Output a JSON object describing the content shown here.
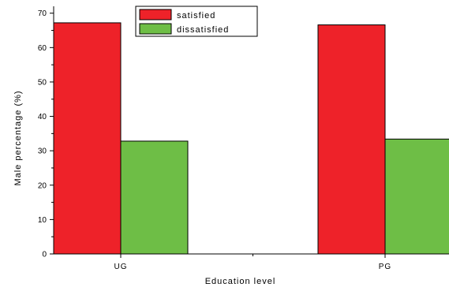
{
  "chart_data": {
    "type": "bar",
    "categories": [
      "UG",
      "PG"
    ],
    "series": [
      {
        "name": "satisfied",
        "color": "#ee2229",
        "values": [
          67.2,
          66.6
        ]
      },
      {
        "name": "dissatisfied",
        "color": "#6ebe46",
        "values": [
          32.8,
          33.4
        ]
      }
    ],
    "xlabel": "Education level",
    "ylabel": "Male percentage (%)",
    "ylim": [
      0,
      72
    ],
    "yticks": [
      0,
      10,
      20,
      30,
      40,
      50,
      60,
      70
    ],
    "grid": false,
    "legend_position": "top-left"
  }
}
